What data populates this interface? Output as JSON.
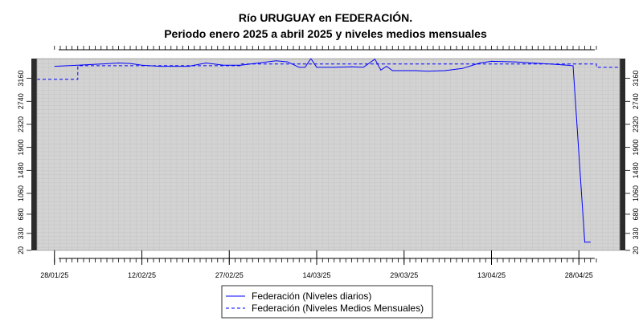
{
  "chart_data": {
    "type": "line",
    "title": "Río URUGUAY en FEDERACIÓN.",
    "subtitle": "Periodo enero 2025 a abril 2025 y niveles medios mensuales",
    "x_range": [
      "2025-01-25",
      "2025-05-05"
    ],
    "x_ticks": [
      "28/01/25",
      "12/02/25",
      "27/02/25",
      "14/03/25",
      "29/03/25",
      "13/04/25",
      "28/04/25"
    ],
    "y_ticks": [
      "20",
      "330",
      "680",
      "1060",
      "1480",
      "1900",
      "2320",
      "2740",
      "3160"
    ],
    "ylim": [
      20,
      3520
    ],
    "grid": true,
    "legend_position": "bottom-center",
    "series": [
      {
        "name": "Federación (Niveles diarios)",
        "style": "solid",
        "color": "#0000ff",
        "points": [
          [
            "2025-01-28",
            3380
          ],
          [
            "2025-02-01",
            3400
          ],
          [
            "2025-02-05",
            3420
          ],
          [
            "2025-02-08",
            3440
          ],
          [
            "2025-02-10",
            3430
          ],
          [
            "2025-02-12",
            3400
          ],
          [
            "2025-02-15",
            3380
          ],
          [
            "2025-02-20",
            3380
          ],
          [
            "2025-02-23",
            3440
          ],
          [
            "2025-02-26",
            3400
          ],
          [
            "2025-03-01",
            3400
          ],
          [
            "2025-03-04",
            3440
          ],
          [
            "2025-03-07",
            3480
          ],
          [
            "2025-03-09",
            3460
          ],
          [
            "2025-03-11",
            3360
          ],
          [
            "2025-03-12",
            3360
          ],
          [
            "2025-03-13",
            3520
          ],
          [
            "2025-03-14",
            3360
          ],
          [
            "2025-03-17",
            3360
          ],
          [
            "2025-03-20",
            3370
          ],
          [
            "2025-03-22",
            3360
          ],
          [
            "2025-03-24",
            3510
          ],
          [
            "2025-03-25",
            3310
          ],
          [
            "2025-03-26",
            3380
          ],
          [
            "2025-03-27",
            3300
          ],
          [
            "2025-03-31",
            3300
          ],
          [
            "2025-04-02",
            3290
          ],
          [
            "2025-04-05",
            3300
          ],
          [
            "2025-04-08",
            3340
          ],
          [
            "2025-04-11",
            3440
          ],
          [
            "2025-04-13",
            3470
          ],
          [
            "2025-04-17",
            3460
          ],
          [
            "2025-04-20",
            3440
          ],
          [
            "2025-04-23",
            3420
          ],
          [
            "2025-04-26",
            3400
          ],
          [
            "2025-04-27",
            3390
          ],
          [
            "2025-04-29",
            170
          ],
          [
            "2025-04-30",
            170
          ]
        ]
      },
      {
        "name": "Federación (Niveles Medios Mensuales)",
        "style": "dashed",
        "color": "#0000ff",
        "points": [
          [
            "2025-01-25",
            3140
          ],
          [
            "2025-02-01",
            3140
          ],
          [
            "2025-02-01",
            3390
          ],
          [
            "2025-03-01",
            3390
          ],
          [
            "2025-03-01",
            3420
          ],
          [
            "2025-04-01",
            3420
          ],
          [
            "2025-04-01",
            3420
          ],
          [
            "2025-05-01",
            3420
          ],
          [
            "2025-05-01",
            3360
          ],
          [
            "2025-05-05",
            3360
          ]
        ]
      }
    ]
  }
}
